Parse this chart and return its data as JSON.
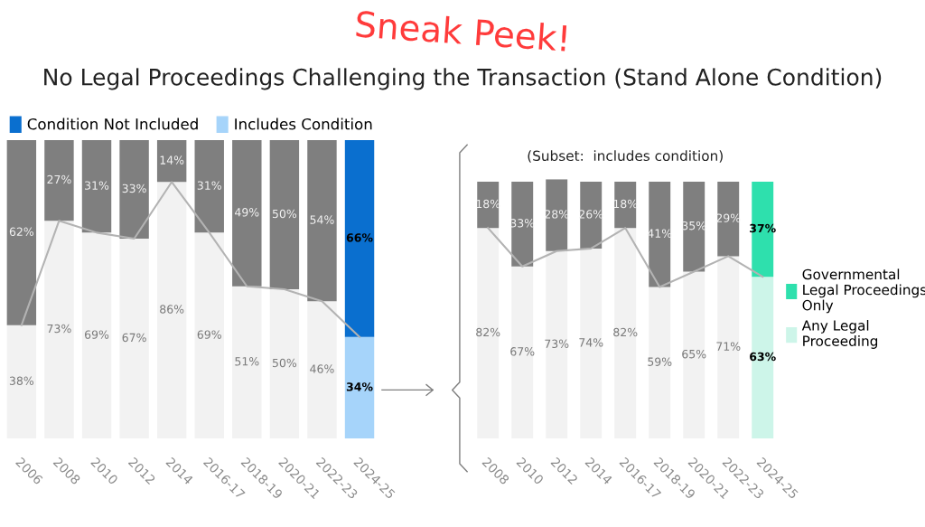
{
  "chart_data": [
    {
      "type": "bar",
      "title": "No Legal Proceedings Challenging the Transaction (Stand Alone Condition)",
      "annotations": [
        "Sneak Peek!"
      ],
      "stacked": true,
      "legend": "top left",
      "grid": false,
      "tick_labels": "x",
      "categories": [
        "2006",
        "2008",
        "2010",
        "2012",
        "2014",
        "2016-17",
        "2018-19",
        "2020-21",
        "2022-23",
        "2024-25"
      ],
      "series": [
        {
          "name": "Includes Condition",
          "color": "#a6d4fa",
          "colors": [
            "#f2f2f2",
            "#f2f2f2",
            "#f2f2f2",
            "#f2f2f2",
            "#f2f2f2",
            "#f2f2f2",
            "#f2f2f2",
            "#f2f2f2",
            "#f2f2f2",
            "#a6d4fa"
          ],
          "values": [
            38,
            73,
            69,
            67,
            86,
            69,
            51,
            50,
            46,
            34
          ],
          "value_labels": [
            "38%",
            "73%",
            "69%",
            "67%",
            "86%",
            "69%",
            "51%",
            "50%",
            "46%",
            "34%"
          ]
        },
        {
          "name": "Condition Not Included",
          "color": "#0a6fcf",
          "colors": [
            "#7f7f7f",
            "#7f7f7f",
            "#7f7f7f",
            "#7f7f7f",
            "#7f7f7f",
            "#7f7f7f",
            "#7f7f7f",
            "#7f7f7f",
            "#7f7f7f",
            "#0a6fcf"
          ],
          "values": [
            62,
            27,
            31,
            33,
            14,
            31,
            49,
            50,
            54,
            66
          ],
          "value_labels": [
            "62%",
            "27%",
            "31%",
            "33%",
            "14%",
            "31%",
            "49%",
            "50%",
            "54%",
            "66%"
          ]
        },
        {
          "type": "line",
          "color": "#b3b3b3",
          "values": [
            38,
            73,
            69,
            67,
            86,
            69,
            51,
            50,
            46,
            34
          ]
        }
      ]
    },
    {
      "type": "bar",
      "annotations": [
        "(Subset:  includes condition)"
      ],
      "stacked": true,
      "legend": "right",
      "grid": false,
      "tick_labels": "x",
      "categories": [
        "2008",
        "2010",
        "2012",
        "2014",
        "2016-17",
        "2018-19",
        "2020-21",
        "2022-23",
        "2024-25"
      ],
      "series": [
        {
          "name": "Any Legal\nProceeding",
          "color": "#cdf5e9",
          "colors": [
            "#f2f2f2",
            "#f2f2f2",
            "#f2f2f2",
            "#f2f2f2",
            "#f2f2f2",
            "#f2f2f2",
            "#f2f2f2",
            "#f2f2f2",
            "#cdf5e9"
          ],
          "values": [
            82,
            67,
            73,
            74,
            82,
            59,
            65,
            71,
            63
          ],
          "value_labels": [
            "82%",
            "67%",
            "73%",
            "74%",
            "82%",
            "59%",
            "65%",
            "71%",
            "63%"
          ]
        },
        {
          "name": "Governmental\nLegal Proceedings\nOnly",
          "color": "#2ee0ad",
          "colors": [
            "#7f7f7f",
            "#7f7f7f",
            "#7f7f7f",
            "#7f7f7f",
            "#7f7f7f",
            "#7f7f7f",
            "#7f7f7f",
            "#7f7f7f",
            "#2ee0ad"
          ],
          "values": [
            18,
            33,
            28,
            26,
            18,
            41,
            35,
            29,
            37
          ],
          "value_labels": [
            "18%",
            "33%",
            "28%",
            "26%",
            "18%",
            "41%",
            "35%",
            "29%",
            "37%"
          ]
        },
        {
          "type": "line",
          "color": "#b3b3b3",
          "values": [
            82,
            67,
            73,
            74,
            82,
            59,
            65,
            71,
            63
          ]
        }
      ]
    }
  ]
}
